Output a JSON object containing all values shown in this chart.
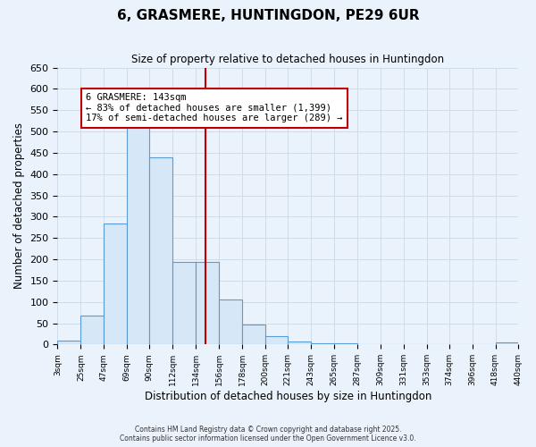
{
  "title": "6, GRASMERE, HUNTINGDON, PE29 6UR",
  "subtitle": "Size of property relative to detached houses in Huntingdon",
  "xlabel": "Distribution of detached houses by size in Huntingdon",
  "ylabel": "Number of detached properties",
  "bar_edges": [
    3,
    25,
    47,
    69,
    90,
    112,
    134,
    156,
    178,
    200,
    221,
    243,
    265,
    287,
    309,
    331,
    353,
    374,
    396,
    418,
    440
  ],
  "bar_heights": [
    10,
    67,
    285,
    512,
    440,
    193,
    193,
    105,
    46,
    20,
    8,
    3,
    2,
    1,
    1,
    0,
    0,
    1,
    0,
    5
  ],
  "tick_labels": [
    "3sqm",
    "25sqm",
    "47sqm",
    "69sqm",
    "90sqm",
    "112sqm",
    "134sqm",
    "156sqm",
    "178sqm",
    "200sqm",
    "221sqm",
    "243sqm",
    "265sqm",
    "287sqm",
    "309sqm",
    "331sqm",
    "353sqm",
    "374sqm",
    "396sqm",
    "418sqm",
    "440sqm"
  ],
  "bar_facecolor": "#d6e8f7",
  "bar_edgecolor": "#5b9bd5",
  "vline_x": 143,
  "vline_color": "#c00000",
  "annotation_title": "6 GRASMERE: 143sqm",
  "annotation_line1": "← 83% of detached houses are smaller (1,399)",
  "annotation_line2": "17% of semi-detached houses are larger (289) →",
  "annotation_box_edgecolor": "#c00000",
  "annotation_box_facecolor": "#ffffff",
  "ylim": [
    0,
    650
  ],
  "yticks": [
    0,
    50,
    100,
    150,
    200,
    250,
    300,
    350,
    400,
    450,
    500,
    550,
    600,
    650
  ],
  "grid_color": "#d0dde8",
  "bg_color": "#eaf2fb",
  "footer_line1": "Contains HM Land Registry data © Crown copyright and database right 2025.",
  "footer_line2": "Contains public sector information licensed under the Open Government Licence v3.0."
}
